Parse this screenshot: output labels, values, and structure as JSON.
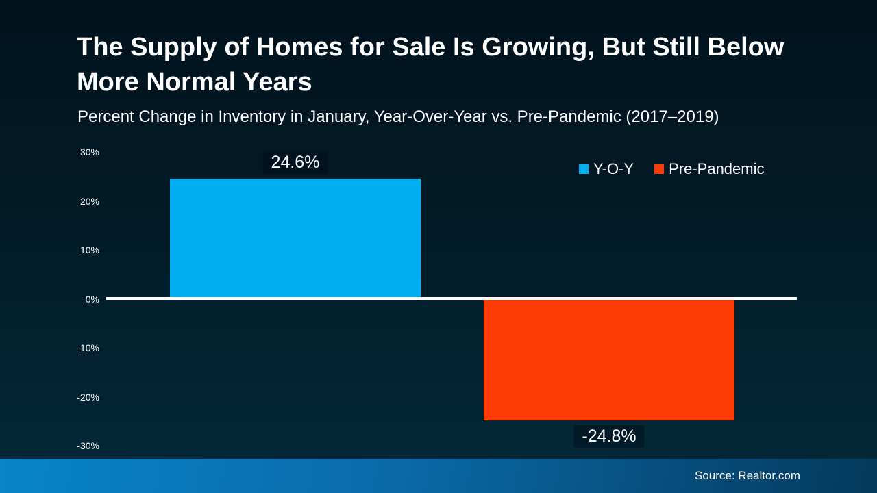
{
  "header": {
    "title": "The Supply of Homes for Sale Is Growing, But Still Below More Normal Years",
    "subtitle": "Percent Change in Inventory in January, Year-Over-Year vs. Pre-Pandemic (2017–2019)"
  },
  "chart_data": {
    "type": "bar",
    "title": "Percent Change in Inventory in January, Year-Over-Year vs. Pre-Pandemic (2017–2019)",
    "series": [
      {
        "name": "Y-O-Y",
        "value": 24.6,
        "label": "24.6%",
        "color": "#00AEEF"
      },
      {
        "name": "Pre-Pandemic",
        "value": -24.8,
        "label": "-24.8%",
        "color": "#FC3A03"
      }
    ],
    "xlabel": "",
    "ylabel": "",
    "ylim": [
      -30,
      30
    ],
    "yticks": [
      30,
      20,
      10,
      0,
      -10,
      -20,
      -30
    ],
    "ytick_labels": [
      "30%",
      "20%",
      "10%",
      "0%",
      "-10%",
      "-20%",
      "-30%"
    ],
    "grid": false,
    "legend_position": "top-right",
    "zero_line_color": "#FFFFFF"
  },
  "footer": {
    "source": "Source: Realtor.com",
    "band_gradient_left": "#0884C9",
    "band_gradient_right": "#04395C"
  },
  "colors": {
    "background_top": "#01131D",
    "background_bottom": "#05293A",
    "text": "#FFFFFF"
  }
}
